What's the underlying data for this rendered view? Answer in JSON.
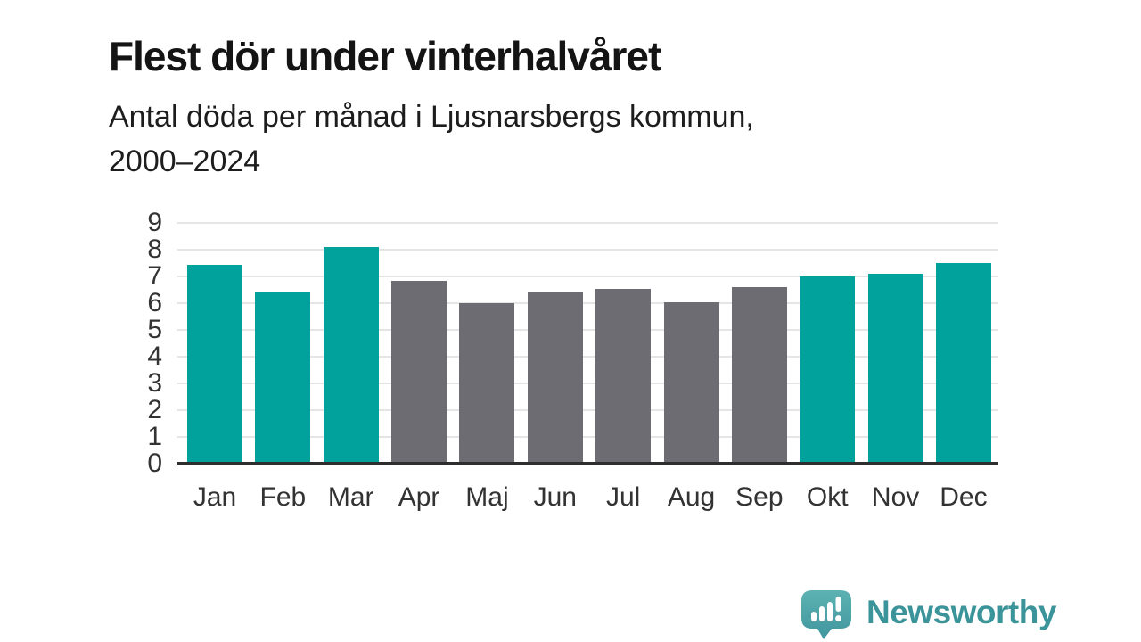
{
  "chart_data": {
    "type": "bar",
    "title": "Flest dör under vinterhalvåret",
    "subtitle": "Antal döda per månad i Ljusnarsbergs kommun,\n2000–2024",
    "categories": [
      "Jan",
      "Feb",
      "Mar",
      "Apr",
      "Maj",
      "Jun",
      "Jul",
      "Aug",
      "Sep",
      "Okt",
      "Nov",
      "Dec"
    ],
    "values": [
      7.45,
      6.4,
      8.1,
      6.85,
      6.0,
      6.4,
      6.55,
      6.05,
      6.6,
      7.0,
      7.1,
      7.5
    ],
    "highlighted_categories": [
      "Jan",
      "Feb",
      "Mar",
      "Okt",
      "Nov",
      "Dec"
    ],
    "highlight_color": "#00a29b",
    "default_color": "#6c6c72",
    "xlabel": "",
    "ylabel": "",
    "ylim": [
      0,
      9
    ],
    "yticks": [
      0,
      1,
      2,
      3,
      4,
      5,
      6,
      7,
      8,
      9
    ],
    "grid": true,
    "legend": false
  },
  "branding": {
    "text": "Newsworthy"
  },
  "colors": {
    "background": "#ffffff",
    "title_text": "#141414",
    "subtitle_text": "#1d1d1d",
    "axis_text": "#333333",
    "gridline": "#e5e5e5",
    "axis_line": "#2e2e2e",
    "brand_teal": "#3a949a",
    "logo_teal_light": "#5db1b1",
    "logo_teal_dark": "#3f969e"
  }
}
